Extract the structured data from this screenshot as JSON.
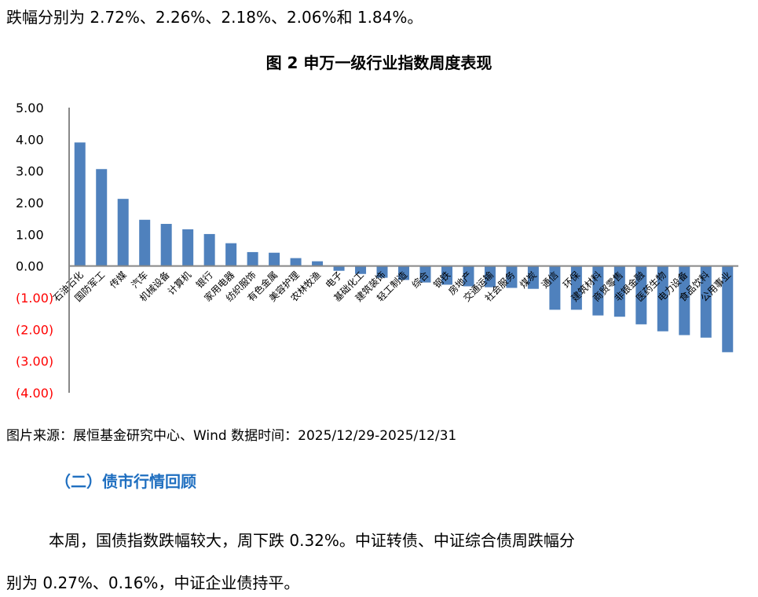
{
  "intro_tail": "跌幅分别为 2.72%、2.26%、2.18%、2.06%和 1.84%。",
  "figure_title": "图 2 申万一级行业指数周度表现",
  "source": "图片来源：展恒基金研究中心、Wind  数据时间：2025/12/29-2025/12/31",
  "section_heading": "（二）债市行情回顾",
  "paragraph_line1": "本周，国债指数跌幅较大，周下跌 0.32%。中证转债、中证综合债周跌幅分",
  "paragraph_line2": "别为 0.27%、0.16%，中证企业债持平。",
  "chart_data": {
    "type": "bar",
    "title": "",
    "xlabel": "",
    "ylabel": "",
    "ylim": [
      -4,
      5
    ],
    "yticks": [
      "5.00",
      "4.00",
      "3.00",
      "2.00",
      "1.00",
      "0.00",
      "(1.00)",
      "(2.00)",
      "(3.00)",
      "(4.00)"
    ],
    "negative_tick_color": "#ff0000",
    "bar_color": "#4f81bd",
    "grid": false,
    "categories": [
      "石油石化",
      "国防军工",
      "传媒",
      "汽车",
      "机械设备",
      "计算机",
      "银行",
      "家用电器",
      "纺织服饰",
      "有色金属",
      "美容护理",
      "农林牧渔",
      "电子",
      "基础化工",
      "建筑装饰",
      "轻工制造",
      "综合",
      "钢铁",
      "房地产",
      "交通运输",
      "社会服务",
      "煤炭",
      "通信",
      "环保",
      "建筑材料",
      "商贸零售",
      "非银金融",
      "医药生物",
      "电力设备",
      "食品饮料",
      "公用事业"
    ],
    "values": [
      3.9,
      3.06,
      2.12,
      1.46,
      1.33,
      1.16,
      1.01,
      0.72,
      0.44,
      0.42,
      0.25,
      0.15,
      -0.15,
      -0.25,
      -0.37,
      -0.44,
      -0.52,
      -0.59,
      -0.64,
      -0.67,
      -0.69,
      -0.72,
      -1.38,
      -1.38,
      -1.56,
      -1.6,
      -1.84,
      -2.06,
      -2.18,
      -2.26,
      -2.72
    ]
  }
}
